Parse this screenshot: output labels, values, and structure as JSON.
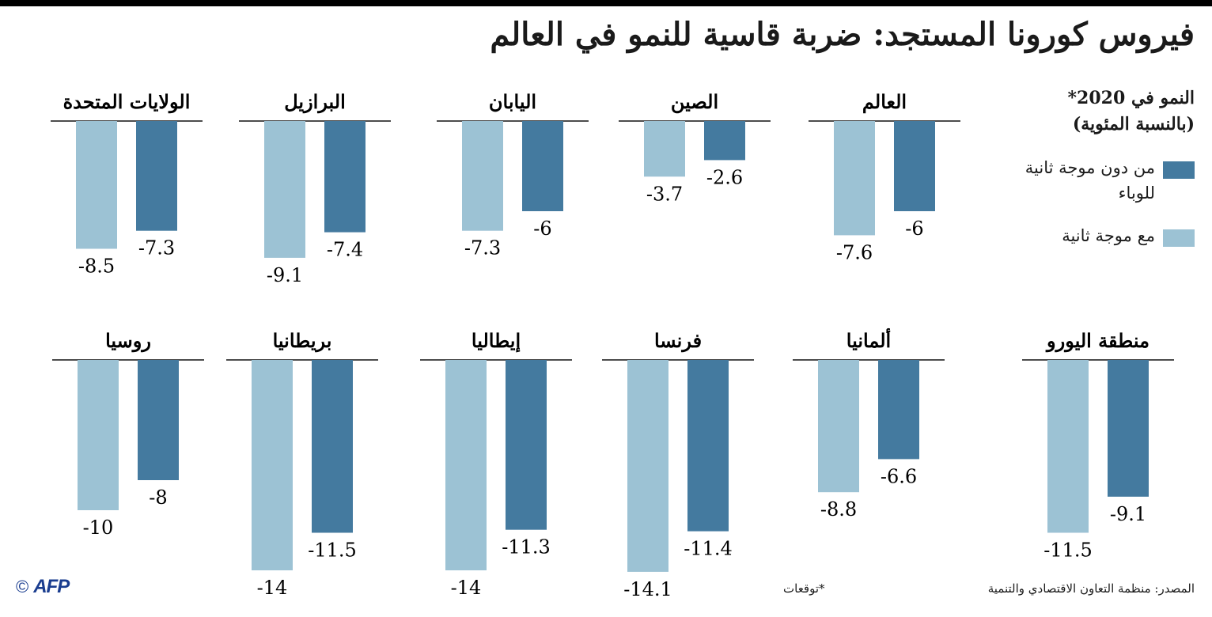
{
  "title": "فيروس كورونا المستجد: ضربة قاسية للنمو في العالم",
  "legend": {
    "heading_line1": "النمو في 2020*",
    "heading_line2": "(بالنسبة المئوية)",
    "items": [
      {
        "label": "من دون موجة ثانية للوباء",
        "color": "#447a9f"
      },
      {
        "label": "مع موجة ثانية",
        "color": "#9cc2d4"
      }
    ]
  },
  "footer": {
    "source": "المصدر: منظمة التعاون الاقتصادي والتنمية",
    "note": "*توقعات",
    "logo": "AFP",
    "copyright": "©"
  },
  "chart_data": {
    "type": "bar",
    "series": [
      {
        "name": "من دون موجة ثانية للوباء",
        "color": "#447a9f"
      },
      {
        "name": "مع موجة ثانية",
        "color": "#9cc2d4"
      }
    ],
    "panels": [
      {
        "title": "العالم",
        "values": [
          -6,
          -7.6
        ],
        "labels": [
          "-6",
          "-7.6"
        ]
      },
      {
        "title": "الصين",
        "values": [
          -2.6,
          -3.7
        ],
        "labels": [
          "-2.6",
          "-3.7"
        ]
      },
      {
        "title": "اليابان",
        "values": [
          -6,
          -7.3
        ],
        "labels": [
          "-6",
          "-7.3"
        ]
      },
      {
        "title": "البرازيل",
        "values": [
          -7.4,
          -9.1
        ],
        "labels": [
          "-7.4",
          "-9.1"
        ]
      },
      {
        "title": "الولايات المتحدة",
        "values": [
          -7.3,
          -8.5
        ],
        "labels": [
          "-7.3",
          "-8.5"
        ]
      },
      {
        "title": "منطقة اليورو",
        "values": [
          -9.1,
          -11.5
        ],
        "labels": [
          "-9.1",
          "-11.5"
        ]
      },
      {
        "title": "ألمانيا",
        "values": [
          -6.6,
          -8.8
        ],
        "labels": [
          "-6.6",
          "-8.8"
        ]
      },
      {
        "title": "فرنسا",
        "values": [
          -11.4,
          -14.1
        ],
        "labels": [
          "-11.4",
          "-14.1"
        ]
      },
      {
        "title": "إيطاليا",
        "values": [
          -11.3,
          -14
        ],
        "labels": [
          "-11.3",
          "-14"
        ]
      },
      {
        "title": "بريطانيا",
        "values": [
          -11.5,
          -14
        ],
        "labels": [
          "-11.5",
          "-14"
        ]
      },
      {
        "title": "روسيا",
        "values": [
          -8,
          -10
        ],
        "labels": [
          "-8",
          "-10"
        ]
      }
    ]
  }
}
